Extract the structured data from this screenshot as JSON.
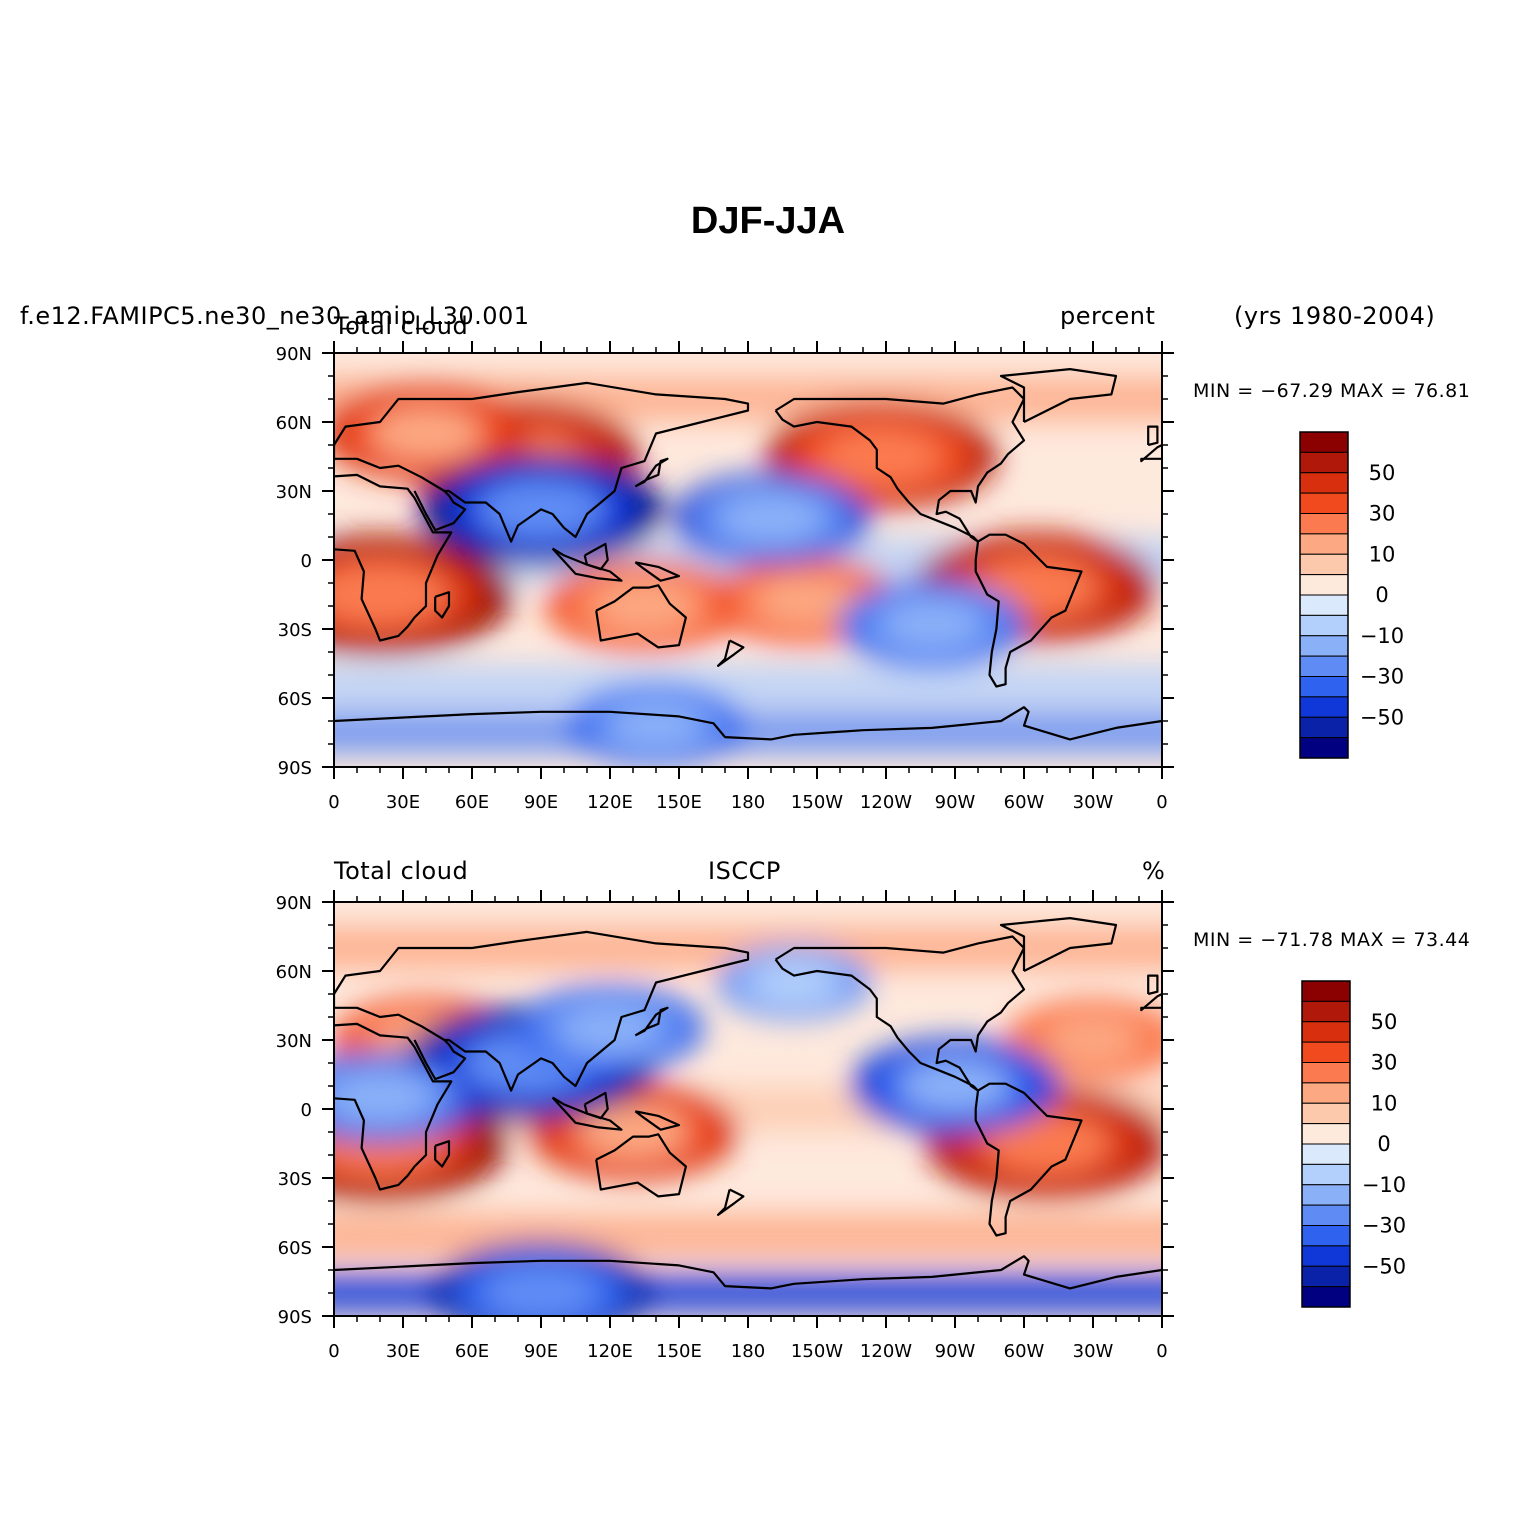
{
  "title": "DJF-JJA",
  "header": {
    "case_name": "f.e12.FAMIPC5.ne30_ne30_amip_L30.001",
    "years": "(yrs 1980-2004)"
  },
  "colors": {
    "scale": [
      "#8b0000",
      "#b0180a",
      "#d8300e",
      "#f04a1e",
      "#fb7a50",
      "#fca882",
      "#fdc9ad",
      "#fee9dd",
      "#dbe9fc",
      "#b3cffb",
      "#8ab0f8",
      "#5e8cf4",
      "#2f62ee",
      "#1038d8",
      "#0a22a8",
      "#000080"
    ],
    "land_outline": "#000000"
  },
  "colorbar_labels": [
    "50",
    "30",
    "10",
    "0",
    "−10",
    "−30",
    "−50"
  ],
  "panels": [
    {
      "id": "model",
      "left_label": "Total cloud",
      "center_label": "",
      "right_label": "percent",
      "min_max": "MIN = −67.29 MAX =  76.81",
      "lat_ticks": [
        "90N",
        "60N",
        "30N",
        "0",
        "30S",
        "60S",
        "90S"
      ],
      "lon_ticks": [
        "0",
        "30E",
        "60E",
        "90E",
        "120E",
        "150E",
        "180",
        "150W",
        "120W",
        "90W",
        "60W",
        "30W",
        "0"
      ]
    },
    {
      "id": "obs",
      "left_label": "Total cloud",
      "center_label": "ISCCP",
      "right_label": "%",
      "min_max": "MIN = −71.78 MAX =  73.44",
      "lat_ticks": [
        "90N",
        "60N",
        "30N",
        "0",
        "30S",
        "60S",
        "90S"
      ],
      "lon_ticks": [
        "0",
        "30E",
        "60E",
        "90E",
        "120E",
        "150E",
        "180",
        "150W",
        "120W",
        "90W",
        "60W",
        "30W",
        "0"
      ]
    }
  ],
  "chart_data": [
    {
      "type": "heatmap",
      "title": "DJF-JJA",
      "subtitle": "Total cloud",
      "units": "percent",
      "source": "f.e12.FAMIPC5.ne30_ne30_amip_L30.001",
      "period": "(yrs 1980-2004)",
      "min": -67.29,
      "max": 76.81,
      "xlim": [
        0,
        360
      ],
      "ylim": [
        -90,
        90
      ],
      "contour_levels": [
        -70,
        -60,
        -50,
        -40,
        -30,
        -20,
        -10,
        -5,
        0,
        5,
        10,
        20,
        30,
        40,
        50,
        60,
        70
      ],
      "anomalies": [
        {
          "lon": 80,
          "lat": 45,
          "value": 60
        },
        {
          "lon": 40,
          "lat": 55,
          "value": 45
        },
        {
          "lon": 20,
          "lat": -15,
          "value": 70
        },
        {
          "lon": 305,
          "lat": -12,
          "value": 60
        },
        {
          "lon": 238,
          "lat": 45,
          "value": 55
        },
        {
          "lon": 135,
          "lat": -20,
          "value": 40
        },
        {
          "lon": 205,
          "lat": -18,
          "value": 35
        },
        {
          "lon": 90,
          "lat": 22,
          "value": -60
        },
        {
          "lon": 190,
          "lat": 18,
          "value": -40
        },
        {
          "lon": 260,
          "lat": -28,
          "value": -35
        },
        {
          "lon": 140,
          "lat": -72,
          "value": -30
        }
      ]
    },
    {
      "type": "heatmap",
      "title": "DJF-JJA",
      "subtitle": "Total cloud",
      "units": "%",
      "source": "ISCCP",
      "min": -71.78,
      "max": 73.44,
      "xlim": [
        0,
        360
      ],
      "ylim": [
        -90,
        90
      ],
      "contour_levels": [
        -70,
        -60,
        -50,
        -40,
        -30,
        -20,
        -10,
        -5,
        0,
        5,
        10,
        20,
        30,
        40,
        50,
        60,
        70
      ],
      "anomalies": [
        {
          "lon": 20,
          "lat": -15,
          "value": 65
        },
        {
          "lon": 310,
          "lat": -15,
          "value": 60
        },
        {
          "lon": 130,
          "lat": -10,
          "value": 45
        },
        {
          "lon": 40,
          "lat": 30,
          "value": 35
        },
        {
          "lon": 330,
          "lat": 30,
          "value": 30
        },
        {
          "lon": 85,
          "lat": 20,
          "value": -65
        },
        {
          "lon": 120,
          "lat": 35,
          "value": -35
        },
        {
          "lon": 270,
          "lat": 10,
          "value": -45
        },
        {
          "lon": 20,
          "lat": 5,
          "value": -40
        },
        {
          "lon": 90,
          "lat": -80,
          "value": -50
        },
        {
          "lon": 200,
          "lat": 55,
          "value": -20
        }
      ]
    }
  ]
}
